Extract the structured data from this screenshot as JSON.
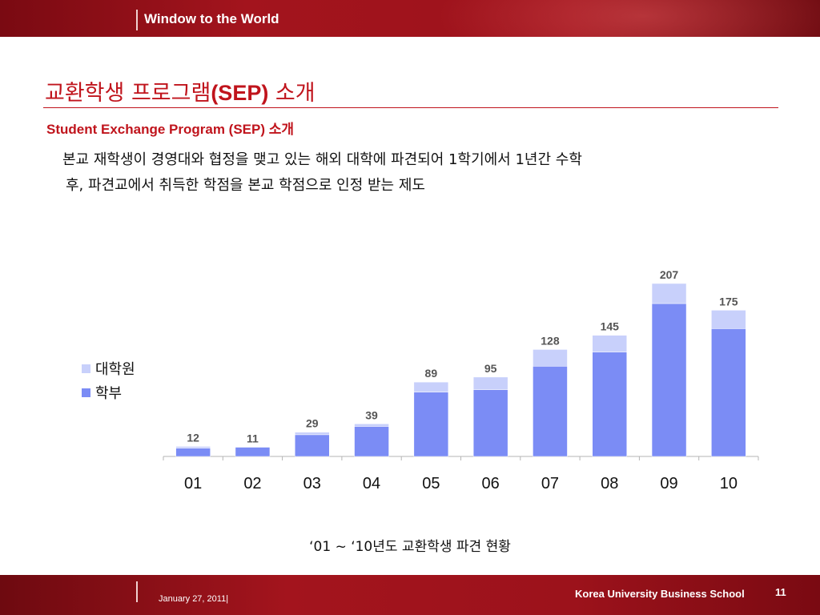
{
  "header": {
    "brand": "Window to the World"
  },
  "slide": {
    "title_ko": "교환학생 프로그램",
    "title_abbr": "(SEP)",
    "title_suffix": " 소개",
    "subtitle_en": "Student Exchange Program (SEP)",
    "subtitle_ko": " 소개",
    "desc_line1": "본교 재학생이 경영대와 협정을 맺고 있는 해외 대학에 파견되어 1학기에서 1년간 수학",
    "desc_line2": "후, 파견교에서 취득한 학점을 본교 학점으로 인정 받는 제도"
  },
  "chart_data": {
    "type": "bar",
    "stacked": true,
    "categories": [
      "01",
      "02",
      "03",
      "04",
      "05",
      "06",
      "07",
      "08",
      "09",
      "10"
    ],
    "series": [
      {
        "name": "학부",
        "color": "#7b8cf5",
        "values": [
          10,
          11,
          26,
          36,
          77,
          80,
          108,
          125,
          183,
          153
        ]
      },
      {
        "name": "대학원",
        "color": "#c8d0fb",
        "values": [
          2,
          0,
          3,
          3,
          12,
          15,
          20,
          20,
          24,
          22
        ]
      }
    ],
    "totals": [
      12,
      11,
      29,
      39,
      89,
      95,
      128,
      145,
      207,
      175
    ],
    "ylim": [
      0,
      207
    ],
    "grid": false,
    "legend_position": "left",
    "label_color": "#555555",
    "caption": "‘01 ~ ‘10년도 교환학생 파견 현황"
  },
  "legend": {
    "items": [
      {
        "label": "대학원",
        "color": "#c8d0fb"
      },
      {
        "label": "학부",
        "color": "#7b8cf5"
      }
    ]
  },
  "footer": {
    "date": "January 27, 2011|",
    "school": "Korea University Business School",
    "page_number": "11"
  }
}
